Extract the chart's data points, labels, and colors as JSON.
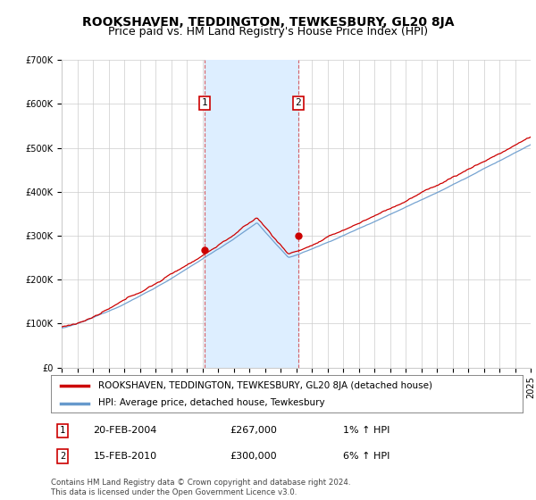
{
  "title": "ROOKSHAVEN, TEDDINGTON, TEWKESBURY, GL20 8JA",
  "subtitle": "Price paid vs. HM Land Registry's House Price Index (HPI)",
  "ylim": [
    0,
    700000
  ],
  "yticks": [
    0,
    100000,
    200000,
    300000,
    400000,
    500000,
    600000,
    700000
  ],
  "ytick_labels": [
    "£0",
    "£100K",
    "£200K",
    "£300K",
    "£400K",
    "£500K",
    "£600K",
    "£700K"
  ],
  "x_start_year": 1995,
  "x_end_year": 2025,
  "sale1_year": 2004.13,
  "sale1_price": 267000,
  "sale1_label": "1",
  "sale1_date": "20-FEB-2004",
  "sale1_hpi": "1% ↑ HPI",
  "sale2_year": 2010.13,
  "sale2_price": 300000,
  "sale2_label": "2",
  "sale2_date": "15-FEB-2010",
  "sale2_hpi": "6% ↑ HPI",
  "line_color_price": "#cc0000",
  "line_color_hpi": "#6699cc",
  "shade_color": "#ddeeff",
  "grid_color": "#cccccc",
  "background_color": "#ffffff",
  "title_fontsize": 10,
  "subtitle_fontsize": 9,
  "tick_fontsize": 7,
  "legend_label_price": "ROOKSHAVEN, TEDDINGTON, TEWKESBURY, GL20 8JA (detached house)",
  "legend_label_hpi": "HPI: Average price, detached house, Tewkesbury",
  "footer": "Contains HM Land Registry data © Crown copyright and database right 2024.\nThis data is licensed under the Open Government Licence v3.0."
}
